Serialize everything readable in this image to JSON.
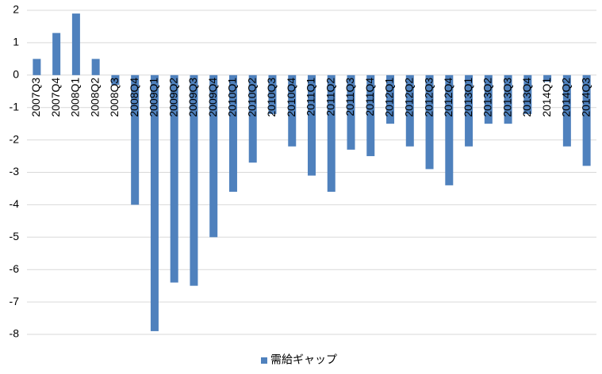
{
  "chart_data": {
    "type": "bar",
    "categories": [
      "2007Q3",
      "2007Q4",
      "2008Q1",
      "2008Q2",
      "2008Q3",
      "2008Q4",
      "2009Q1",
      "2009Q2",
      "2009Q3",
      "2009Q4",
      "2010Q1",
      "2010Q2",
      "2010Q3",
      "2010Q4",
      "2011Q1",
      "2011Q2",
      "2011Q3",
      "2011Q4",
      "2012Q1",
      "2012Q2",
      "2012Q3",
      "2012Q4",
      "2013Q1",
      "2013Q2",
      "2013Q3",
      "2013Q4",
      "2014Q1",
      "2014Q2",
      "2014Q3"
    ],
    "series": [
      {
        "name": "需給ギャップ",
        "color": "#4f81bd",
        "values": [
          0.5,
          1.3,
          1.9,
          0.5,
          -0.3,
          -4.0,
          -7.9,
          -6.4,
          -6.5,
          -5.0,
          -3.6,
          -2.7,
          -1.2,
          -2.2,
          -3.1,
          -3.6,
          -2.3,
          -2.5,
          -1.5,
          -2.2,
          -2.9,
          -3.4,
          -2.2,
          -1.5,
          -1.5,
          -1.2,
          -0.2,
          -2.2,
          -2.8
        ]
      }
    ],
    "ylim": [
      -8,
      2
    ],
    "yticks": [
      -8,
      -7,
      -6,
      -5,
      -4,
      -3,
      -2,
      -1,
      0,
      1,
      2
    ],
    "grid": true,
    "legend": "bottom"
  }
}
